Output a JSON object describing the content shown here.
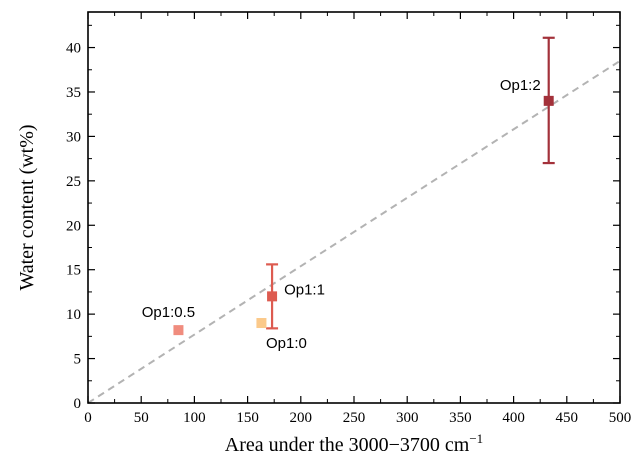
{
  "chart_data": {
    "type": "scatter",
    "xlabel": "Area under the 3000−3700 cm",
    "xlabel_sup": "−1",
    "ylabel": "Water content (wt%)",
    "xlim": [
      0,
      500
    ],
    "ylim": [
      0,
      44
    ],
    "xticks": [
      0,
      50,
      100,
      150,
      200,
      250,
      300,
      350,
      400,
      450,
      500
    ],
    "yticks": [
      0,
      5,
      10,
      15,
      20,
      25,
      30,
      35,
      40
    ],
    "grid": false,
    "points": [
      {
        "label": "Op1:0.5",
        "x": 85,
        "y": 8.2,
        "color": "#f08c7e"
      },
      {
        "label": "Op1:0",
        "x": 163,
        "y": 9.0,
        "color": "#fbc98a"
      },
      {
        "label": "Op1:1",
        "x": 173,
        "y": 12.0,
        "yerr_low": 8.4,
        "yerr_high": 15.6,
        "color": "#dd5b50"
      },
      {
        "label": "Op1:2",
        "x": 433,
        "y": 34.0,
        "yerr_low": 27.0,
        "yerr_high": 41.1,
        "color": "#a3313a"
      }
    ],
    "fit_line": {
      "x": [
        0,
        500
      ],
      "y": [
        0,
        38.5
      ],
      "color": "#b3b3b3",
      "style": "dashed"
    }
  }
}
